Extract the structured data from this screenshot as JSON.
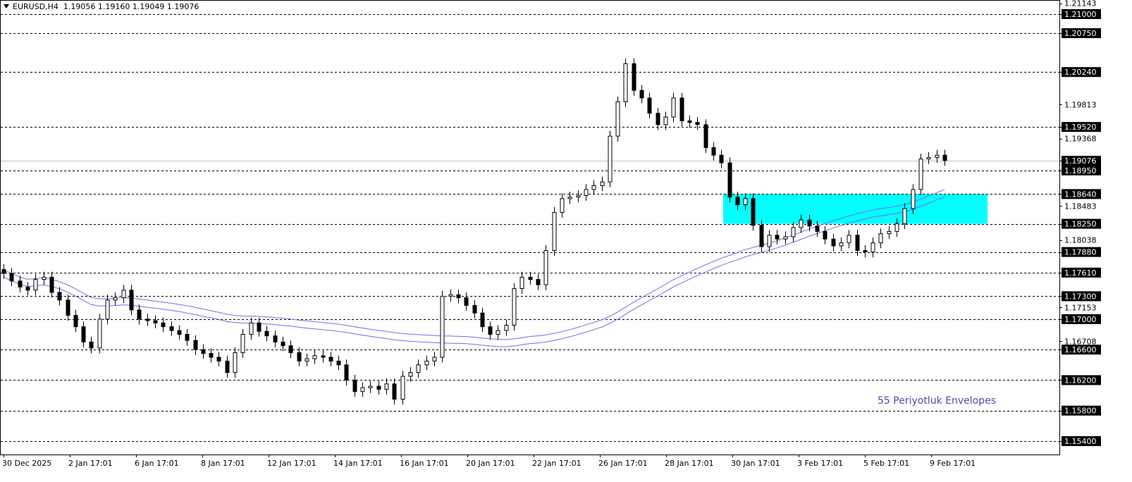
{
  "header": {
    "symbol": "EURUSD,H4",
    "ohlc": "1.19056 1.19160 1.19049 1.19076",
    "menu_icon": "triangle-down-icon"
  },
  "annotation": "55 Periyotluk Envelopes",
  "colors": {
    "bull_body": "#ffffff",
    "bear_body": "#000000",
    "envelope": "#7b68ee",
    "zone": "#00ffff",
    "level_line": "#000000",
    "bid_line": "#c0c0c0"
  },
  "chart_data": {
    "type": "candlestick",
    "symbol": "EURUSD",
    "timeframe": "H4",
    "ylim": [
      1.1512,
      1.2114
    ],
    "x_tick_labels": [
      "30 Dec 2025",
      "2 Jan 17:01",
      "6 Jan 17:01",
      "8 Jan 17:01",
      "12 Jan 17:01",
      "14 Jan 17:01",
      "16 Jan 17:01",
      "20 Jan 17:01",
      "22 Jan 17:01",
      "26 Jan 17:01",
      "28 Jan 17:01",
      "30 Jan 17:01",
      "3 Feb 17:01",
      "5 Feb 17:01",
      "9 Feb 17:01"
    ],
    "y_tick_labels": [
      "1.21143",
      "1.19813",
      "1.19368",
      "1.18483",
      "1.18038",
      "1.17153",
      "1.16708"
    ],
    "levels": [
      "1.21000",
      "1.20750",
      "1.20240",
      "1.19520",
      "1.18950",
      "1.18640",
      "1.18250",
      "1.17880",
      "1.17610",
      "1.17300",
      "1.17000",
      "1.16600",
      "1.16200",
      "1.15800",
      "1.15400"
    ],
    "bid": "1.19076",
    "zone": {
      "from": 1.1825,
      "to": 1.1864
    },
    "envelopes": {
      "period": 55,
      "deviation_percent": 0.04
    },
    "first_open": 1.1765,
    "closes": [
      1.176,
      1.175,
      1.1742,
      1.1738,
      1.1752,
      1.1755,
      1.1735,
      1.1725,
      1.1705,
      1.169,
      1.167,
      1.1662,
      1.17,
      1.1725,
      1.1728,
      1.1738,
      1.1712,
      1.17,
      1.1698,
      1.1695,
      1.169,
      1.1685,
      1.168,
      1.1672,
      1.166,
      1.1655,
      1.165,
      1.1645,
      1.163,
      1.1656,
      1.168,
      1.1695,
      1.1684,
      1.1678,
      1.167,
      1.1665,
      1.1656,
      1.1645,
      1.1648,
      1.1652,
      1.165,
      1.1645,
      1.164,
      1.162,
      1.1605,
      1.161,
      1.1612,
      1.1608,
      1.1615,
      1.1595,
      1.1625,
      1.163,
      1.164,
      1.1645,
      1.165,
      1.173,
      1.1732,
      1.1728,
      1.1718,
      1.1708,
      1.169,
      1.168,
      1.1685,
      1.1692,
      1.174,
      1.1755,
      1.1752,
      1.1745,
      1.179,
      1.184,
      1.1858,
      1.186,
      1.1862,
      1.187,
      1.1875,
      1.188,
      1.194,
      1.1985,
      1.2035,
      1.2,
      1.199,
      1.197,
      1.1955,
      1.1965,
      1.199,
      1.196,
      1.1958,
      1.1955,
      1.1925,
      1.1915,
      1.1905,
      1.186,
      1.185,
      1.1858,
      1.1823,
      1.1795,
      1.181,
      1.1805,
      1.1808,
      1.182,
      1.183,
      1.1822,
      1.1815,
      1.1805,
      1.1796,
      1.18,
      1.181,
      1.179,
      1.1788,
      1.18,
      1.1812,
      1.1815,
      1.1825,
      1.1845,
      1.187,
      1.191,
      1.1912,
      1.1915,
      1.1908
    ]
  }
}
